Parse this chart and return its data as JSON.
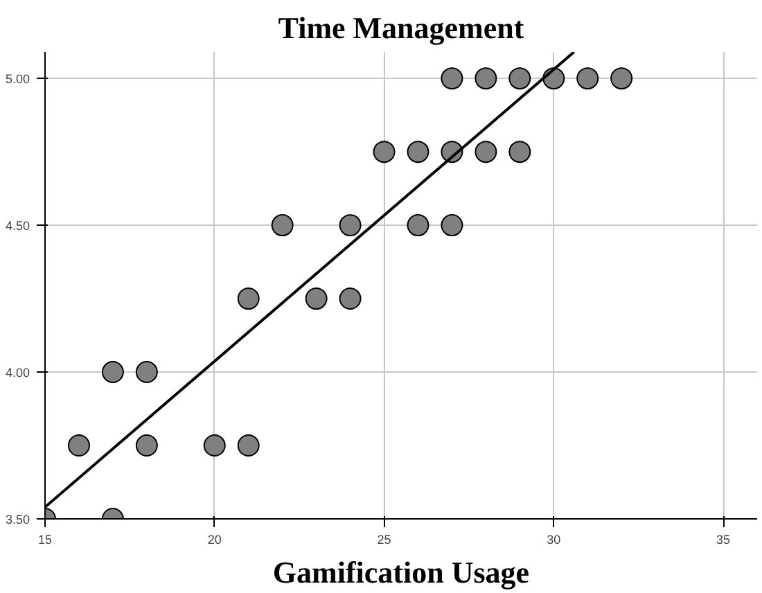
{
  "chart_data": {
    "type": "scatter",
    "title": "Time Management",
    "xlabel": "Gamification Usage",
    "xlim": [
      15,
      36
    ],
    "ylim": [
      3.5,
      5.09
    ],
    "xticks": [
      15,
      20,
      25,
      30,
      35
    ],
    "yticks": [
      {
        "value": 3.5,
        "label": "3.50"
      },
      {
        "value": 4.0,
        "label": "4.00"
      },
      {
        "value": 4.5,
        "label": "4.50"
      },
      {
        "value": 5.0,
        "label": "5.00"
      }
    ],
    "grid": true,
    "series": [
      {
        "marker": "circle",
        "color": "#808080",
        "x": [
          15,
          16,
          17,
          17,
          18,
          18,
          20,
          21,
          21,
          22,
          23,
          24,
          24,
          25,
          26,
          26,
          27,
          27,
          27,
          28,
          28,
          29,
          29,
          30,
          31,
          32
        ],
        "values": [
          3.5,
          3.75,
          4.0,
          3.5,
          4.0,
          3.75,
          3.75,
          3.75,
          4.25,
          4.5,
          4.25,
          4.25,
          4.5,
          4.75,
          4.75,
          4.5,
          4.5,
          4.75,
          5.0,
          5.0,
          4.75,
          5.0,
          4.75,
          5.0,
          5.0,
          5.0
        ]
      },
      {
        "type": "line",
        "color": "#000000",
        "x": [
          15,
          30.6
        ],
        "values": [
          3.54,
          5.09
        ]
      }
    ]
  }
}
